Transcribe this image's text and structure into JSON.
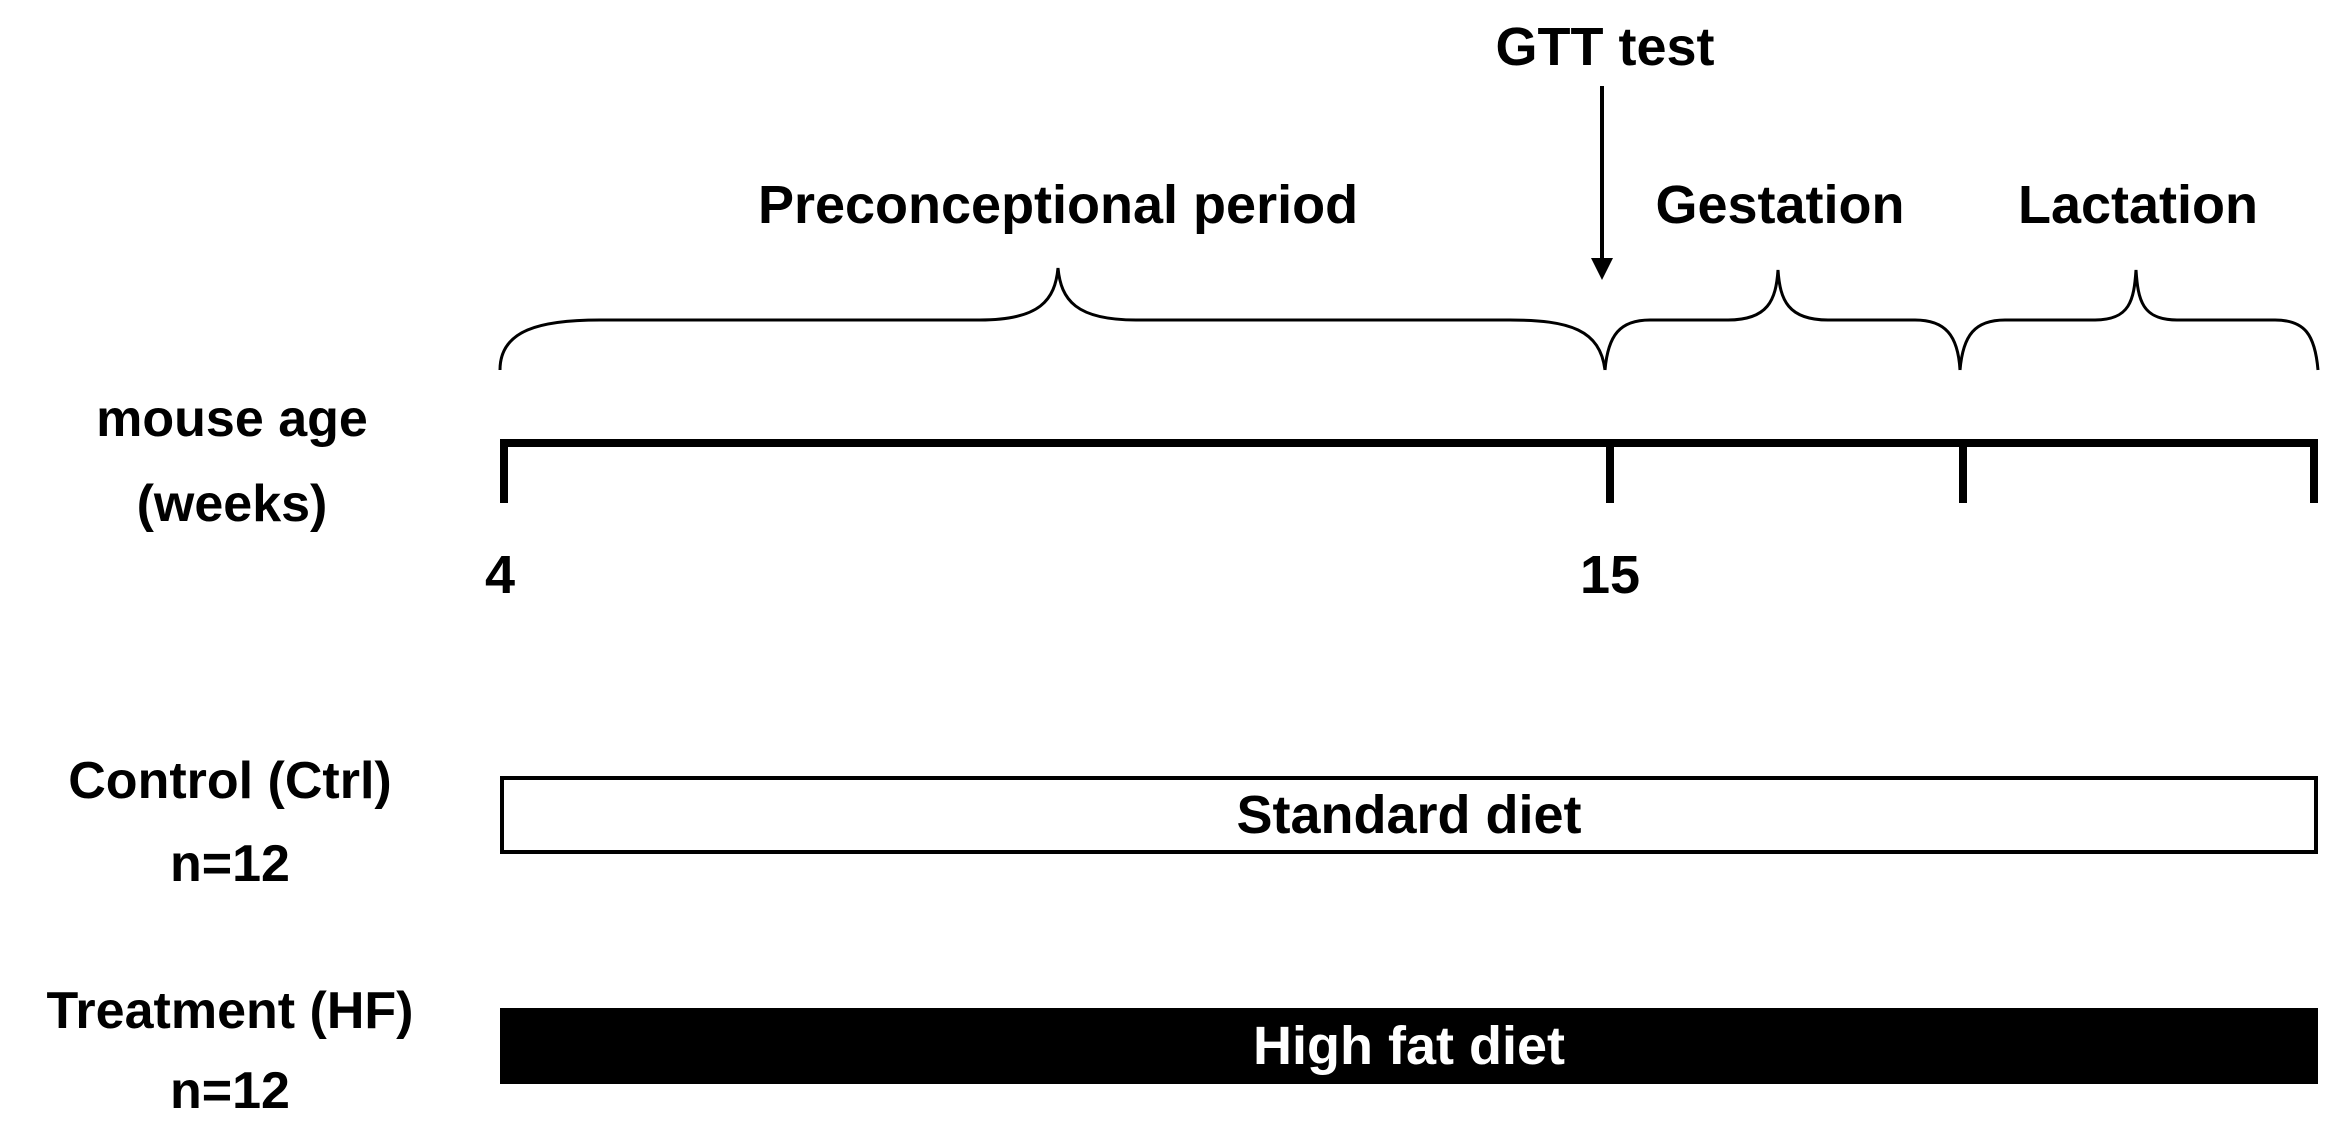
{
  "annotation": {
    "gtt": "GTT test"
  },
  "periods": [
    {
      "id": "preconceptional",
      "label": "Preconceptional period"
    },
    {
      "id": "gestation",
      "label": "Gestation"
    },
    {
      "id": "lactation",
      "label": "Lactation"
    }
  ],
  "axis": {
    "label_line1": "mouse age",
    "label_line2": "(weeks)",
    "tick_labels": [
      "4",
      "15"
    ]
  },
  "groups": [
    {
      "id": "ctrl",
      "name": "Control (Ctrl)",
      "n": "n=12",
      "diet": "Standard diet",
      "fill": "#ffffff",
      "text_color": "#000000"
    },
    {
      "id": "hf",
      "name": "Treatment (HF)",
      "n": "n=12",
      "diet": "High fat diet",
      "fill": "#000000",
      "text_color": "#ffffff"
    }
  ],
  "colors": {
    "ink": "#000000",
    "background": "#ffffff"
  }
}
